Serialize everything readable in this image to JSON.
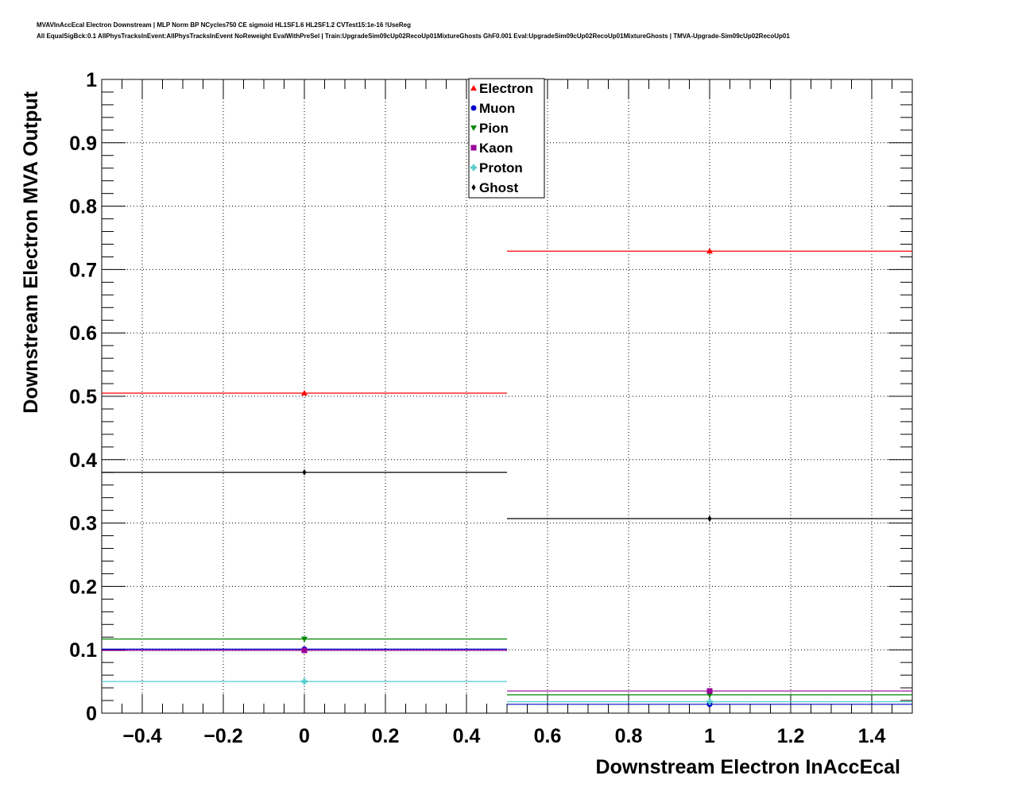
{
  "chart_data": {
    "type": "scatter",
    "title_line1": "MVAVInAccEcal Electron Downstream | MLP Norm BP NCycles750 CE sigmoid HL1SF1.6 HL2SF1.2 CVTest15:1e-16 !UseReg",
    "title_line2": "All EqualSigBck:0.1 AllPhysTracksInEvent:AllPhysTracksInEvent NoReweight EvalWithPreSel | Train:UpgradeSim09cUp02RecoUp01MixtureGhosts GhF0.001 Eval:UpgradeSim09cUp02RecoUp01MixtureGhosts | TMVA-Upgrade-Sim09cUp02RecoUp01",
    "xlabel": "Downstream Electron InAccEcal",
    "ylabel": "Downstream Electron MVA Output",
    "xlim": [
      -0.5,
      1.5
    ],
    "ylim": [
      0,
      1
    ],
    "xticks": [
      -0.4,
      -0.2,
      0,
      0.2,
      0.4,
      0.6,
      0.8,
      1,
      1.2,
      1.4
    ],
    "xtick_labels": [
      "−0.4",
      "−0.2",
      "0",
      "0.2",
      "0.4",
      "0.6",
      "0.8",
      "1",
      "1.2",
      "1.4"
    ],
    "yticks": [
      0,
      0.1,
      0.2,
      0.3,
      0.4,
      0.5,
      0.6,
      0.7,
      0.8,
      0.9,
      1
    ],
    "ytick_labels": [
      "0",
      "0.1",
      "0.2",
      "0.3",
      "0.4",
      "0.5",
      "0.6",
      "0.7",
      "0.8",
      "0.9",
      "1"
    ],
    "grid": true,
    "legend_position": "top-center",
    "bins": [
      [
        -0.5,
        0.5
      ],
      [
        0.5,
        1.5
      ]
    ],
    "x": [
      0,
      1
    ],
    "series": [
      {
        "name": "Electron",
        "color": "#ff0000",
        "marker": "triangle-up",
        "values": [
          0.505,
          0.729
        ]
      },
      {
        "name": "Muon",
        "color": "#0000cc",
        "marker": "circle",
        "values": [
          0.101,
          0.014
        ]
      },
      {
        "name": "Pion",
        "color": "#008800",
        "marker": "triangle-down",
        "values": [
          0.117,
          0.029
        ]
      },
      {
        "name": "Kaon",
        "color": "#990099",
        "marker": "square",
        "values": [
          0.099,
          0.035
        ]
      },
      {
        "name": "Proton",
        "color": "#55cccc",
        "marker": "cross",
        "values": [
          0.05,
          0.018
        ]
      },
      {
        "name": "Ghost",
        "color": "#000000",
        "marker": "diamond",
        "values": [
          0.38,
          0.307
        ]
      }
    ]
  }
}
